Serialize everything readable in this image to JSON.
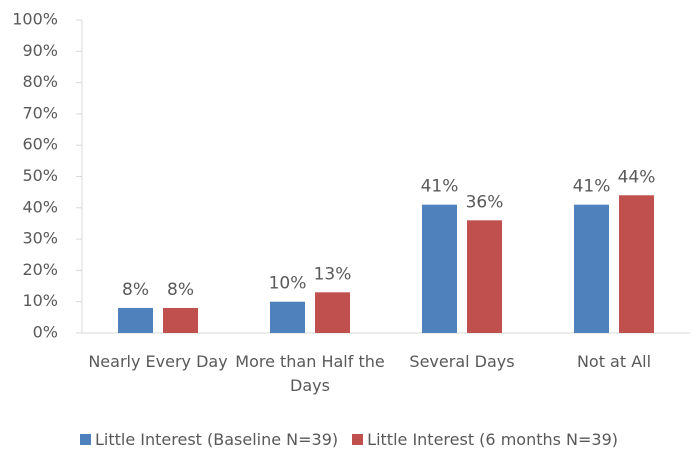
{
  "chart_data": {
    "type": "bar",
    "categories": [
      "Nearly Every Day",
      "More than Half the Days",
      "Several Days",
      "Not at All"
    ],
    "series": [
      {
        "name": "Little Interest (Baseline N=39)",
        "color": "#4f81bd",
        "values": [
          8,
          10,
          41,
          41
        ],
        "value_labels": [
          "8%",
          "10%",
          "41%",
          "41%"
        ]
      },
      {
        "name": "Little Interest (6 months N=39)",
        "color": "#c0504d",
        "values": [
          8,
          13,
          36,
          44
        ],
        "value_labels": [
          "8%",
          "13%",
          "36%",
          "44%"
        ]
      }
    ],
    "ylim": [
      0,
      100
    ],
    "yticks": [
      {
        "value": 0,
        "label": "0%"
      },
      {
        "value": 10,
        "label": "10%"
      },
      {
        "value": 20,
        "label": "20%"
      },
      {
        "value": 30,
        "label": "30%"
      },
      {
        "value": 40,
        "label": "40%"
      },
      {
        "value": 50,
        "label": "50%"
      },
      {
        "value": 60,
        "label": "60%"
      },
      {
        "value": 70,
        "label": "70%"
      },
      {
        "value": 80,
        "label": "80%"
      },
      {
        "value": 90,
        "label": "90%"
      },
      {
        "value": 100,
        "label": "100%"
      }
    ],
    "grid": false,
    "legend": "bottom"
  }
}
